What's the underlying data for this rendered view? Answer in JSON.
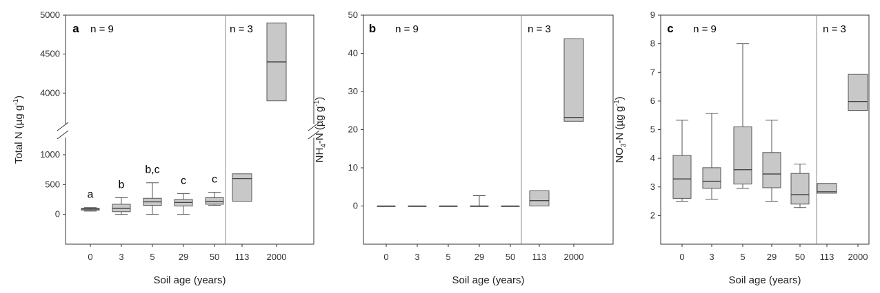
{
  "chart_data": [
    {
      "type": "box",
      "panel": "a",
      "ylabel_main": "Total N (µg g",
      "ylabel_sup": "-1",
      "ylabel_end": ")",
      "xlabel": "Soil age (years)",
      "categories": [
        "0",
        "3",
        "5",
        "29",
        "50",
        "113",
        "2000"
      ],
      "n_labels": [
        "n = 9",
        "n = 3"
      ],
      "lower_ticks": [
        "0",
        "500",
        "1000"
      ],
      "upper_ticks": [
        "4000",
        "4500",
        "5000"
      ],
      "axis_break": true,
      "lower_range": [
        -500,
        1000
      ],
      "upper_range": [
        3800,
        5000
      ],
      "boxes": [
        {
          "cat": "0",
          "min": 55,
          "q1": 70,
          "median": 88,
          "q3": 100,
          "max": 115,
          "sig": "a"
        },
        {
          "cat": "3",
          "min": 0,
          "q1": 45,
          "median": 100,
          "q3": 170,
          "max": 280,
          "sig": "b"
        },
        {
          "cat": "5",
          "min": 0,
          "q1": 150,
          "median": 210,
          "q3": 270,
          "max": 530,
          "sig": "b,c"
        },
        {
          "cat": "29",
          "min": 0,
          "q1": 140,
          "median": 200,
          "q3": 250,
          "max": 350,
          "sig": "c"
        },
        {
          "cat": "50",
          "min": 150,
          "q1": 170,
          "median": 220,
          "q3": 280,
          "max": 370,
          "sig": "c"
        },
        {
          "cat": "113",
          "q1": 220,
          "median": 600,
          "q3": 680,
          "sig": ""
        },
        {
          "cat": "2000",
          "q1": 3900,
          "median": 4400,
          "q3": 4900,
          "sig": ""
        }
      ]
    },
    {
      "type": "box",
      "panel": "b",
      "ylabel_main": "NH",
      "ylabel_sub": "4",
      "ylabel_mid": "-N (µg g",
      "ylabel_sup": "-1",
      "ylabel_end": ")",
      "xlabel": "Soil age (years)",
      "categories": [
        "0",
        "3",
        "5",
        "29",
        "50",
        "113",
        "2000"
      ],
      "n_labels": [
        "n = 9",
        "n = 3"
      ],
      "ylim": [
        -10,
        50
      ],
      "yticks": [
        "0",
        "10",
        "20",
        "30",
        "40",
        "50"
      ],
      "boxes": [
        {
          "cat": "0",
          "min": 0,
          "q1": 0,
          "median": 0,
          "q3": 0,
          "max": 0
        },
        {
          "cat": "3",
          "min": 0,
          "q1": 0,
          "median": 0,
          "q3": 0,
          "max": 0
        },
        {
          "cat": "5",
          "min": 0,
          "q1": 0,
          "median": 0,
          "q3": 0,
          "max": 0
        },
        {
          "cat": "29",
          "min": 0,
          "q1": 0,
          "median": 0,
          "q3": 0,
          "max": 2.7
        },
        {
          "cat": "50",
          "min": 0,
          "q1": 0,
          "median": 0,
          "q3": 0,
          "max": 0
        },
        {
          "cat": "113",
          "q1": 0,
          "median": 1.4,
          "q3": 4.0
        },
        {
          "cat": "2000",
          "q1": 22.2,
          "median": 23.2,
          "q3": 43.8
        }
      ]
    },
    {
      "type": "box",
      "panel": "c",
      "ylabel_main": "NO",
      "ylabel_sub": "3",
      "ylabel_mid": "-N (µg g",
      "ylabel_sup": "-1",
      "ylabel_end": ")",
      "xlabel": "Soil age (years)",
      "categories": [
        "0",
        "3",
        "5",
        "29",
        "50",
        "113",
        "2000"
      ],
      "n_labels": [
        "n = 9",
        "n = 3"
      ],
      "ylim": [
        1,
        9
      ],
      "yticks": [
        "2",
        "3",
        "4",
        "5",
        "6",
        "7",
        "8",
        "9"
      ],
      "boxes": [
        {
          "cat": "0",
          "min": 2.5,
          "q1": 2.6,
          "median": 3.28,
          "q3": 4.1,
          "max": 5.33
        },
        {
          "cat": "3",
          "min": 2.57,
          "q1": 2.95,
          "median": 3.2,
          "q3": 3.67,
          "max": 5.57
        },
        {
          "cat": "5",
          "min": 2.95,
          "q1": 3.1,
          "median": 3.6,
          "q3": 5.1,
          "max": 8.0
        },
        {
          "cat": "29",
          "min": 2.5,
          "q1": 2.97,
          "median": 3.45,
          "q3": 4.2,
          "max": 5.33
        },
        {
          "cat": "50",
          "min": 2.28,
          "q1": 2.4,
          "median": 2.73,
          "q3": 3.47,
          "max": 3.8
        },
        {
          "cat": "113",
          "q1": 2.78,
          "median": 2.83,
          "q3": 3.12
        },
        {
          "cat": "2000",
          "q1": 5.67,
          "median": 5.98,
          "q3": 6.93
        }
      ]
    }
  ],
  "colors": {
    "box_fill": "#c8c8c8",
    "box_stroke": "#555555",
    "frame": "#333333",
    "divider": "#888888"
  }
}
